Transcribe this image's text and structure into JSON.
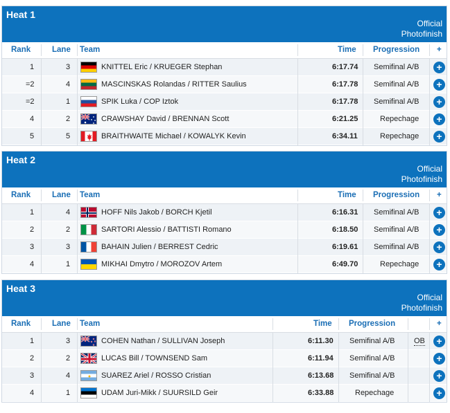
{
  "official_label": [
    "Official",
    "Photofinish"
  ],
  "columns": {
    "rank": "Rank",
    "lane": "Lane",
    "team": "Team",
    "time": "Time",
    "progression": "Progression",
    "plus": "+"
  },
  "heats": [
    {
      "title": "Heat 1",
      "rows": [
        {
          "rank": "1",
          "lane": "3",
          "flag": "germany-flag",
          "team": "KNITTEL Eric / KRUEGER Stephan",
          "time": "6:17.74",
          "progression": "Semifinal A/B"
        },
        {
          "rank": "=2",
          "lane": "4",
          "flag": "lithuania-flag",
          "team": "MASCINSKAS Rolandas / RITTER Saulius",
          "time": "6:17.78",
          "progression": "Semifinal A/B"
        },
        {
          "rank": "=2",
          "lane": "1",
          "flag": "slovenia-flag",
          "team": "SPIK Luka / COP Iztok",
          "time": "6:17.78",
          "progression": "Semifinal A/B"
        },
        {
          "rank": "4",
          "lane": "2",
          "flag": "australia-flag",
          "team": "CRAWSHAY David / BRENNAN Scott",
          "time": "6:21.25",
          "progression": "Repechage"
        },
        {
          "rank": "5",
          "lane": "5",
          "flag": "canada-flag",
          "team": "BRAITHWAITE Michael / KOWALYK Kevin",
          "time": "6:34.11",
          "progression": "Repechage"
        }
      ]
    },
    {
      "title": "Heat 2",
      "rows": [
        {
          "rank": "1",
          "lane": "4",
          "flag": "norway-flag",
          "team": "HOFF Nils Jakob / BORCH Kjetil",
          "time": "6:16.31",
          "progression": "Semifinal A/B"
        },
        {
          "rank": "2",
          "lane": "2",
          "flag": "italy-flag",
          "team": "SARTORI Alessio / BATTISTI Romano",
          "time": "6:18.50",
          "progression": "Semifinal A/B"
        },
        {
          "rank": "3",
          "lane": "3",
          "flag": "france-flag",
          "team": "BAHAIN Julien / BERREST Cedric",
          "time": "6:19.61",
          "progression": "Semifinal A/B"
        },
        {
          "rank": "4",
          "lane": "1",
          "flag": "ukraine-flag",
          "team": "MIKHAI Dmytro / MOROZOV Artem",
          "time": "6:49.70",
          "progression": "Repechage"
        }
      ]
    },
    {
      "title": "Heat 3",
      "rows": [
        {
          "rank": "1",
          "lane": "3",
          "flag": "new-zealand-flag",
          "team": "COHEN Nathan / SULLIVAN Joseph",
          "time": "6:11.30",
          "progression": "Semifinal A/B",
          "note": "OB"
        },
        {
          "rank": "2",
          "lane": "2",
          "flag": "great-britain-flag",
          "team": "LUCAS Bill / TOWNSEND Sam",
          "time": "6:11.94",
          "progression": "Semifinal A/B"
        },
        {
          "rank": "3",
          "lane": "4",
          "flag": "argentina-flag",
          "team": "SUAREZ Ariel / ROSSO Cristian",
          "time": "6:13.68",
          "progression": "Semifinal A/B"
        },
        {
          "rank": "4",
          "lane": "1",
          "flag": "estonia-flag",
          "team": "UDAM Juri-Mikk / SUURSILD Geir",
          "time": "6:33.88",
          "progression": "Repechage"
        }
      ]
    }
  ]
}
